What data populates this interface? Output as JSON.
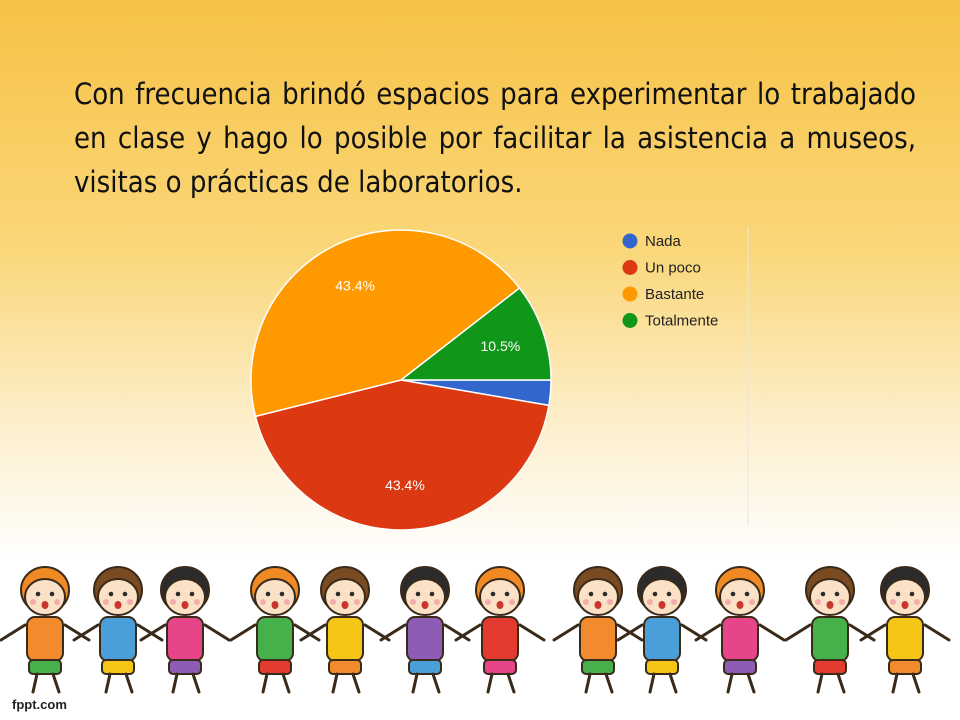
{
  "slide": {
    "text": "Con frecuencia brindó espacios para experimentar lo trabajado en clase y hago lo posible por facilitar la asistencia a museos, visitas o prácticas de laboratorios."
  },
  "chart_data": {
    "type": "pie",
    "legend_position": "right",
    "slices": [
      {
        "label": "Nada",
        "value": 2.7,
        "display": "",
        "color": "#3366cc"
      },
      {
        "label": "Un poco",
        "value": 43.4,
        "display": "43.4%",
        "color": "#dc3912"
      },
      {
        "label": "Bastante",
        "value": 43.4,
        "display": "43.4%",
        "color": "#ff9900"
      },
      {
        "label": "Totalmente",
        "value": 10.5,
        "display": "10.5%",
        "color": "#109618"
      }
    ]
  },
  "footer": {
    "brand": "fppt.com"
  },
  "decoration": {
    "kids_colors": [
      "#f28a2e",
      "#4a9fd8",
      "#e6458a",
      "#46b04a",
      "#f5c518",
      "#8e5bb5",
      "#e33b2f"
    ]
  }
}
